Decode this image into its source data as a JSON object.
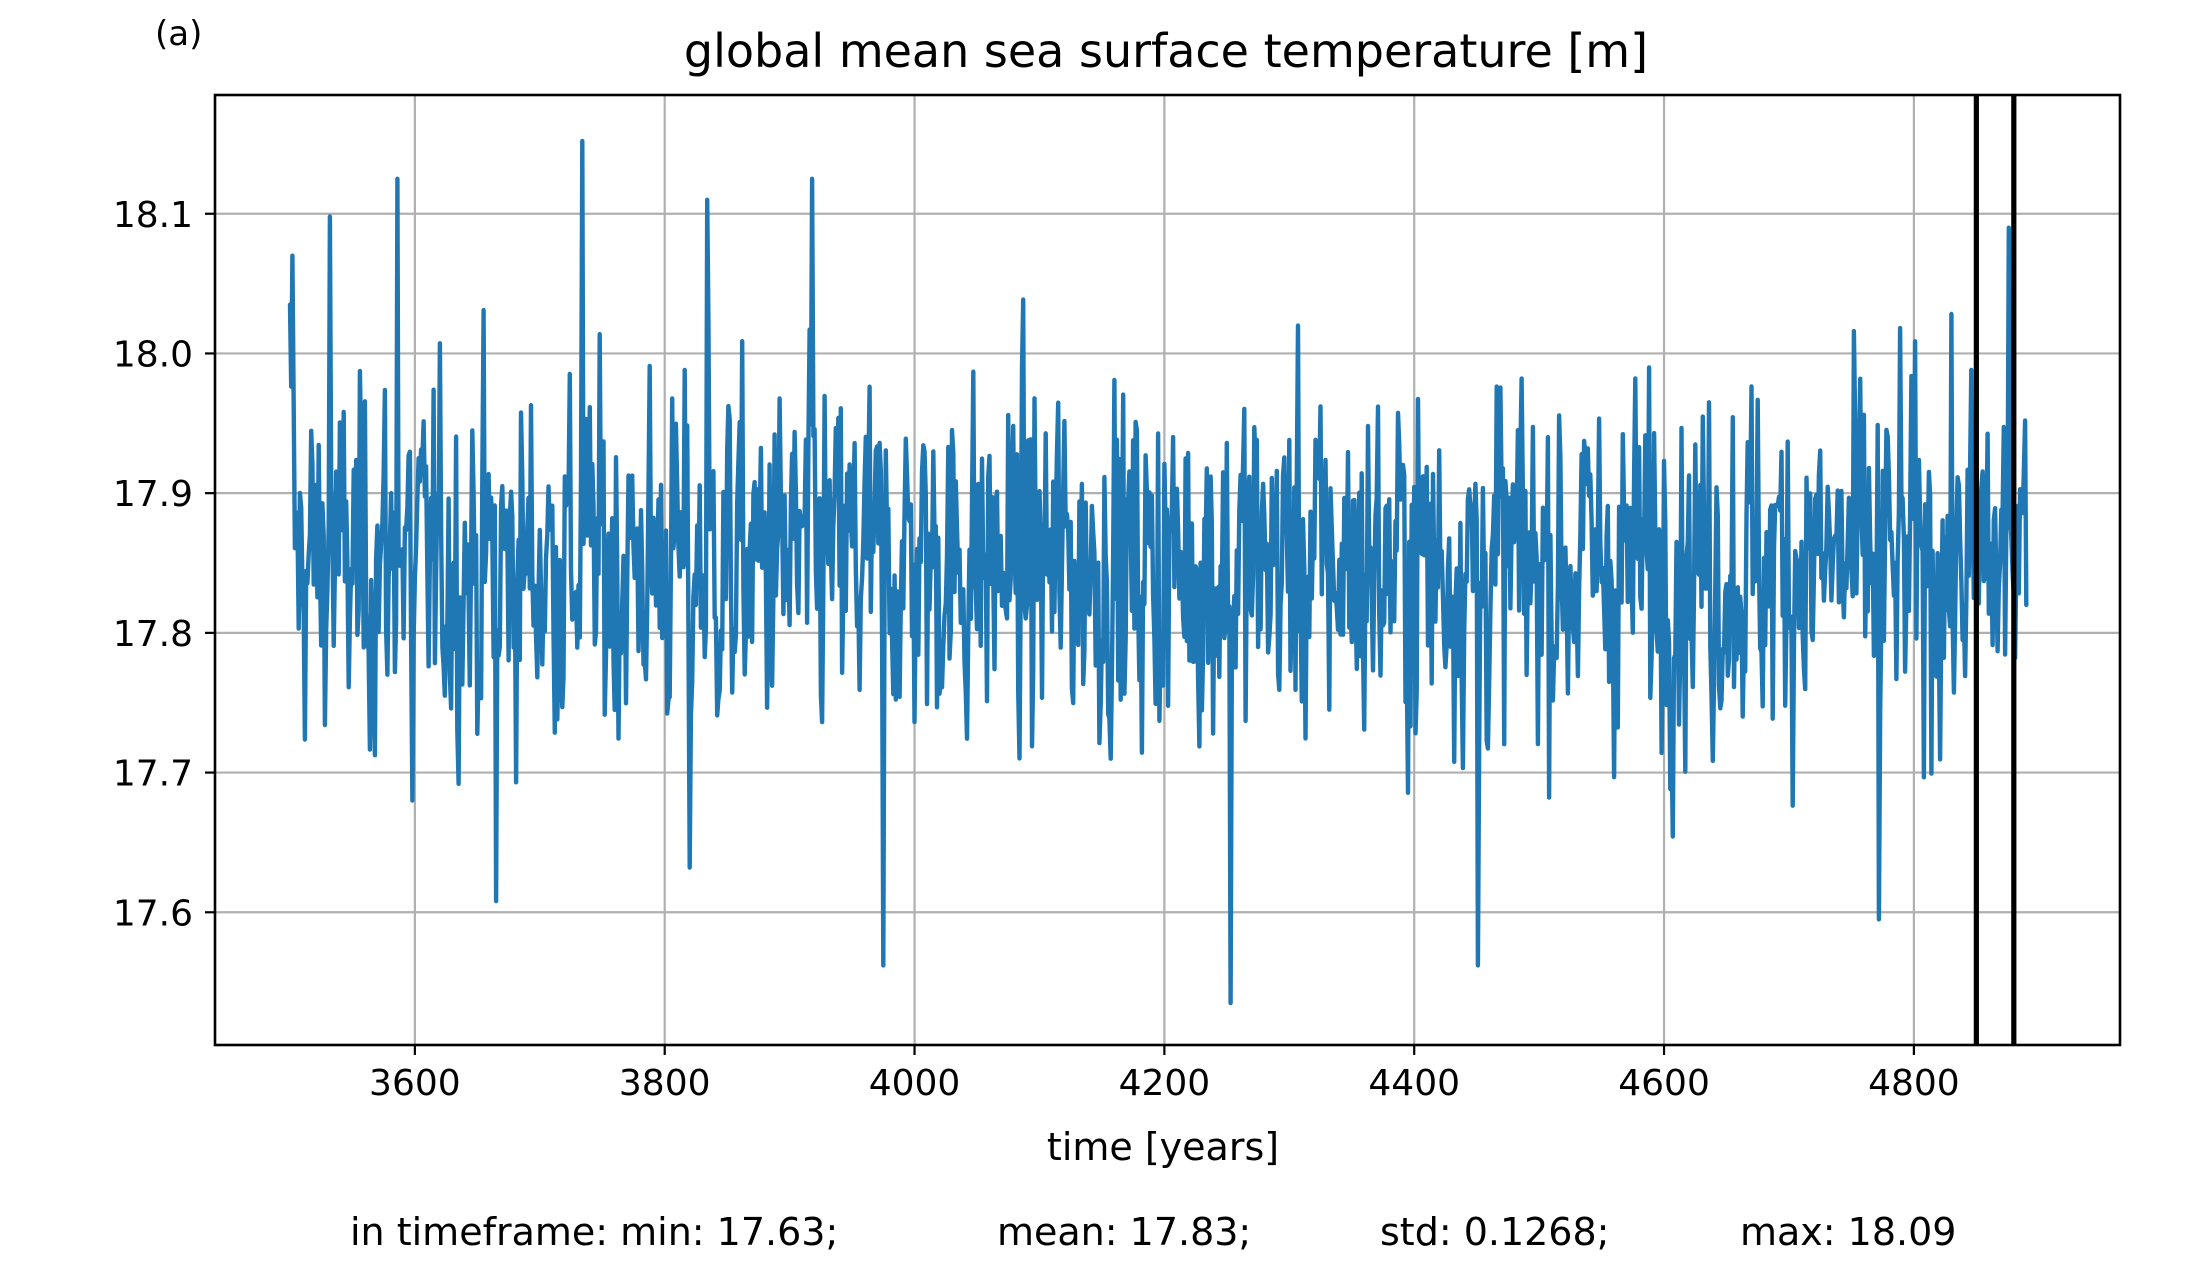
{
  "panel_label": "(a)",
  "chart_data": {
    "type": "line",
    "title": "global mean sea surface temperature [m]",
    "xlabel": "time [years]",
    "ylabel": "",
    "xlim": [
      3440,
      4965
    ],
    "ylim": [
      17.505,
      18.185
    ],
    "xticks": [
      3600,
      3800,
      4000,
      4200,
      4400,
      4600,
      4800
    ],
    "yticks": [
      17.6,
      17.7,
      17.8,
      17.9,
      18.0,
      18.1
    ],
    "xtick_labels": [
      "3600",
      "3800",
      "4000",
      "4200",
      "4400",
      "4600",
      "4800"
    ],
    "ytick_labels": [
      "17.6",
      "17.7",
      "17.8",
      "17.9",
      "18.0",
      "18.1"
    ],
    "grid": true,
    "series": [
      {
        "color": "#1f77b4",
        "x_start": 3500,
        "x_end": 4890,
        "x_step": 1,
        "statistics_overall": {
          "min": 17.535,
          "max": 18.152,
          "mean": 17.85
        },
        "notable_points": [
          {
            "x": 3500,
            "y": 18.035
          },
          {
            "x": 3502,
            "y": 18.07
          },
          {
            "x": 3532,
            "y": 18.098
          },
          {
            "x": 3586,
            "y": 18.125
          },
          {
            "x": 3598,
            "y": 17.68
          },
          {
            "x": 3665,
            "y": 17.608
          },
          {
            "x": 3734,
            "y": 18.152
          },
          {
            "x": 3820,
            "y": 17.632
          },
          {
            "x": 3834,
            "y": 18.11
          },
          {
            "x": 3918,
            "y": 18.125
          },
          {
            "x": 3975,
            "y": 17.562
          },
          {
            "x": 4253,
            "y": 17.535
          },
          {
            "x": 4451,
            "y": 17.562
          },
          {
            "x": 4772,
            "y": 17.595
          },
          {
            "x": 4876,
            "y": 18.09
          },
          {
            "x": 4890,
            "y": 17.82
          }
        ]
      }
    ],
    "vertical_markers": [
      {
        "x": 4850,
        "color": "#000000"
      },
      {
        "x": 4880,
        "color": "#000000"
      }
    ]
  },
  "stats_line": {
    "min": "in timeframe: min: 17.63;",
    "mean": "mean: 17.83;",
    "std": "std: 0.1268;",
    "max": "max: 18.09"
  }
}
